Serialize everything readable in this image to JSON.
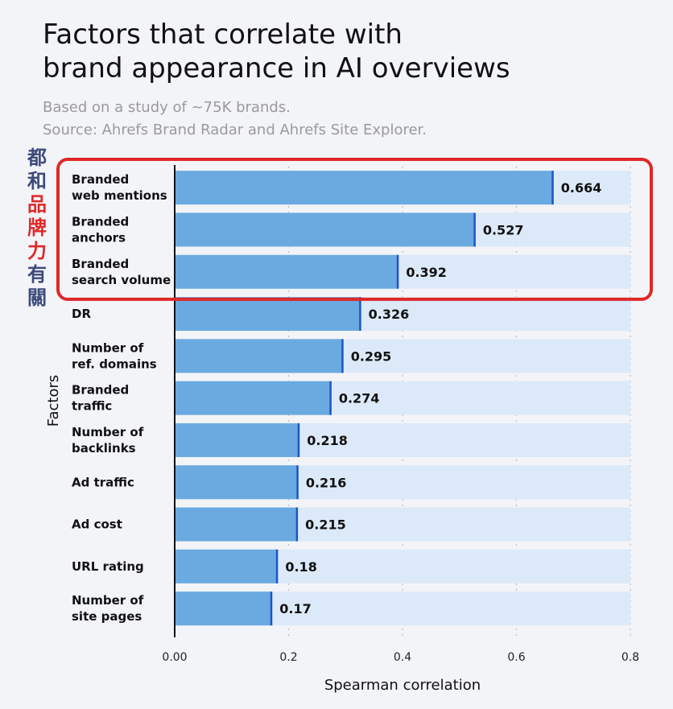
{
  "title": [
    "Factors that correlate with",
    "brand appearance in AI overviews"
  ],
  "subtitle": [
    "Based on a study of ~75K brands.",
    "Source: Ahrefs Brand Radar and Ahrefs Site Explorer."
  ],
  "annotation": {
    "chars": [
      "都",
      "和",
      "品",
      "牌",
      "力",
      "有",
      "關"
    ],
    "colors": [
      "#3d4a7a",
      "#3d4a7a",
      "#e02828",
      "#e02828",
      "#e02828",
      "#3d4a7a",
      "#3d4a7a"
    ],
    "highlight_color": "#e02828",
    "highlight_rows": 3
  },
  "colors": {
    "bar": "#6aaae0",
    "bar_end": "#1a55c8",
    "track": "#dce9f8",
    "text": "#111111"
  },
  "chart_data": {
    "type": "bar",
    "orientation": "horizontal",
    "categories": [
      [
        "Branded",
        "web mentions"
      ],
      [
        "Branded",
        "anchors"
      ],
      [
        "Branded",
        "search volume"
      ],
      [
        "DR"
      ],
      [
        "Number of",
        "ref. domains"
      ],
      [
        "Branded",
        "traffic"
      ],
      [
        "Number of",
        "backlinks"
      ],
      [
        "Ad traffic"
      ],
      [
        "Ad cost"
      ],
      [
        "URL rating"
      ],
      [
        "Number of",
        "site pages"
      ]
    ],
    "values": [
      0.664,
      0.527,
      0.392,
      0.326,
      0.295,
      0.274,
      0.218,
      0.216,
      0.215,
      0.18,
      0.17
    ],
    "value_labels": [
      "0.664",
      "0.527",
      "0.392",
      "0.326",
      "0.295",
      "0.274",
      "0.218",
      "0.216",
      "0.215",
      "0.18",
      "0.17"
    ],
    "xlabel": "Spearman correlation",
    "ylabel": "Factors",
    "xlim": [
      0,
      0.8
    ],
    "xticks": [
      "0.00",
      "0.2",
      "0.4",
      "0.6",
      "0.8"
    ],
    "grid": true
  }
}
